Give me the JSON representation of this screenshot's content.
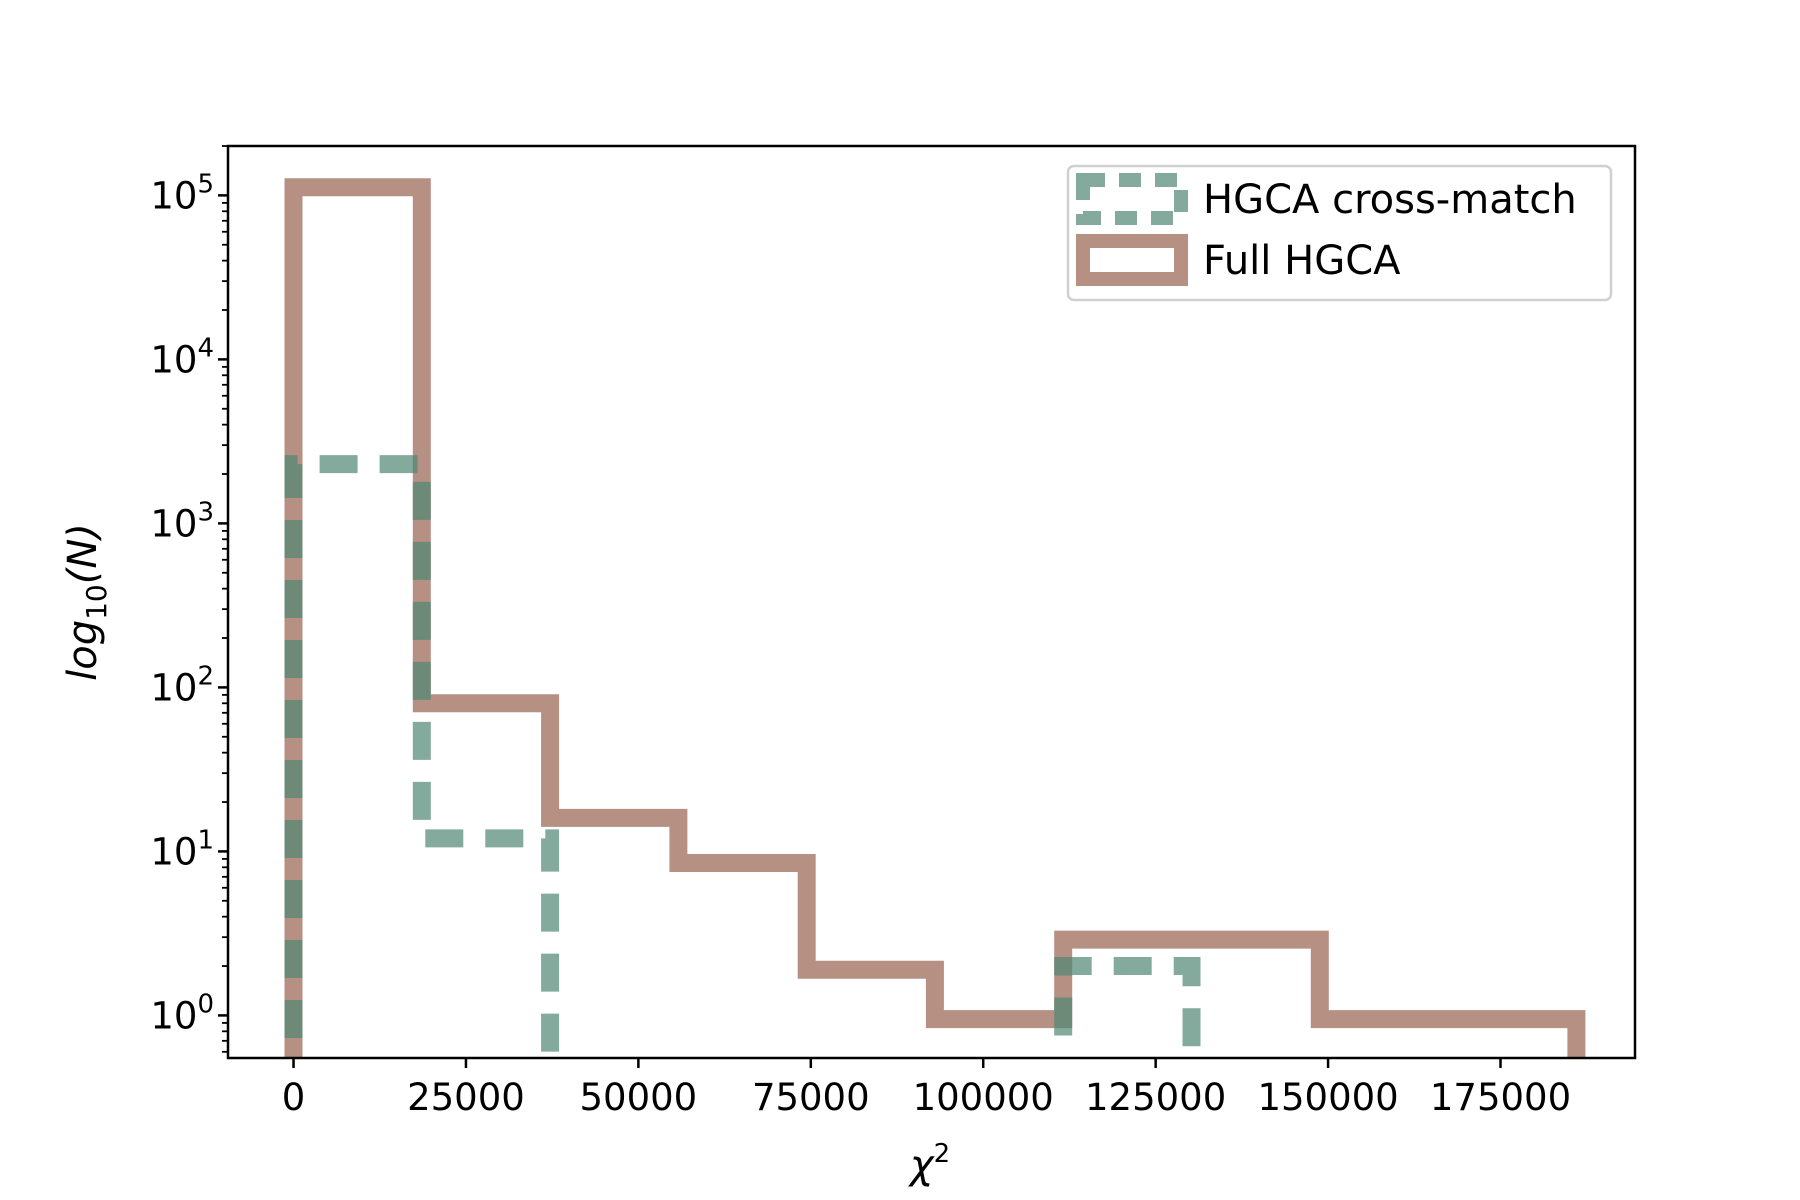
{
  "chart_data": {
    "type": "histogram",
    "title": "",
    "xlabel": "χ",
    "xlabel_sup": "2",
    "ylabel_main": "log",
    "ylabel_sub": "10",
    "ylabel_tail": "(N)",
    "y_scale": "log",
    "xlim": [
      -9500,
      194500
    ],
    "ylim": [
      0.55,
      200000
    ],
    "grid": false,
    "legend_position": "upper-right",
    "x_ticks": [
      {
        "value": 0,
        "label": "0"
      },
      {
        "value": 25000,
        "label": "25000"
      },
      {
        "value": 50000,
        "label": "50000"
      },
      {
        "value": 75000,
        "label": "75000"
      },
      {
        "value": 100000,
        "label": "100000"
      },
      {
        "value": 125000,
        "label": "125000"
      },
      {
        "value": 150000,
        "label": "150000"
      },
      {
        "value": 175000,
        "label": "175000"
      }
    ],
    "y_ticks": [
      {
        "value": 1,
        "base": "10",
        "exp": "0"
      },
      {
        "value": 10,
        "base": "10",
        "exp": "1"
      },
      {
        "value": 100,
        "base": "10",
        "exp": "2"
      },
      {
        "value": 1000,
        "base": "10",
        "exp": "3"
      },
      {
        "value": 10000,
        "base": "10",
        "exp": "4"
      },
      {
        "value": 100000,
        "base": "10",
        "exp": "5"
      }
    ],
    "series": [
      {
        "name": "Full HGCA",
        "color": "#9c6b59",
        "opacity": 0.75,
        "line_style": "solid",
        "bin_edges": [
          0,
          18600,
          37200,
          55800,
          74400,
          93000,
          111600,
          130200,
          148800,
          167400,
          186000
        ],
        "counts": [
          112000,
          80,
          16,
          8.5,
          1.9,
          0.95,
          2.9,
          2.9,
          0.95,
          0.95
        ]
      },
      {
        "name": "HGCA cross-match",
        "color": "#4f8673",
        "opacity": 0.7,
        "line_style": "dashed",
        "bin_edges": [
          0,
          18600,
          37200,
          55800,
          74400,
          93000,
          111600,
          130200
        ],
        "counts": [
          2300,
          12,
          0,
          0,
          0,
          0,
          2
        ]
      }
    ]
  }
}
